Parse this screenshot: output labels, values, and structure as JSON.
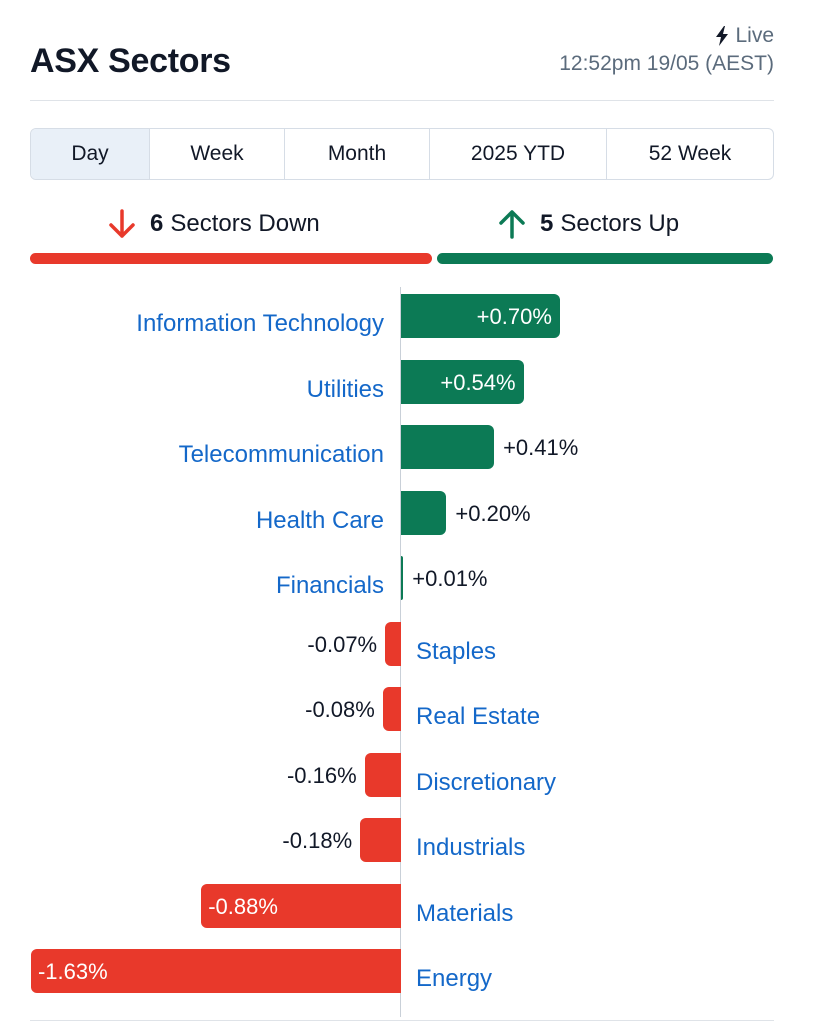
{
  "header": {
    "title": "ASX Sectors",
    "live_label": "Live",
    "timestamp": "12:52pm 19/05 (AEST)"
  },
  "tabs": [
    {
      "label": "Day",
      "active": true
    },
    {
      "label": "Week",
      "active": false
    },
    {
      "label": "Month",
      "active": false
    },
    {
      "label": "2025 YTD",
      "active": false
    },
    {
      "label": "52 Week",
      "active": false
    }
  ],
  "summary": {
    "down_count": "6",
    "down_label": "Sectors Down",
    "up_count": "5",
    "up_label": "Sectors Up"
  },
  "colors": {
    "positive": "#0c7a55",
    "negative": "#e8392b",
    "link": "#1468c9"
  },
  "chart_data": {
    "type": "bar",
    "orientation": "horizontal",
    "unit": "%",
    "categories": [
      "Information Technology",
      "Utilities",
      "Telecommunication",
      "Health Care",
      "Financials",
      "Staples",
      "Real Estate",
      "Discretionary",
      "Industrials",
      "Materials",
      "Energy"
    ],
    "values": [
      0.7,
      0.54,
      0.41,
      0.2,
      0.01,
      -0.07,
      -0.08,
      -0.16,
      -0.18,
      -0.88,
      -1.63
    ],
    "value_labels": [
      "+0.70%",
      "+0.54%",
      "+0.41%",
      "+0.20%",
      "+0.01%",
      "-0.07%",
      "-0.08%",
      "-0.16%",
      "-0.18%",
      "-0.88%",
      "-1.63%"
    ]
  }
}
